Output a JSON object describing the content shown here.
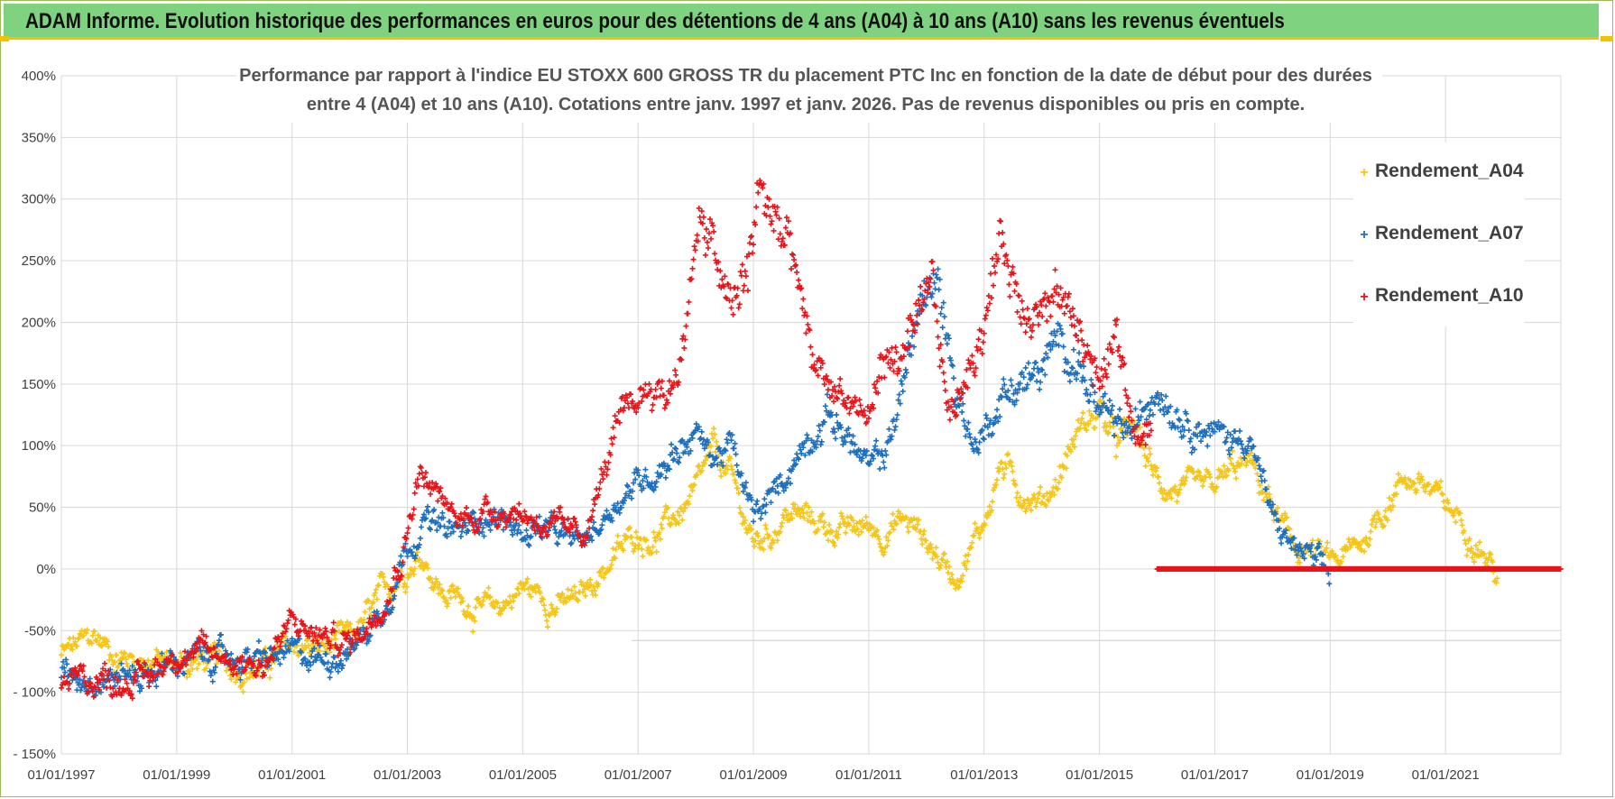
{
  "banner": {
    "title": "ADAM Informe. Evolution historique des performances en euros pour des détentions de 4 ans (A04) à 10 ans (A10) sans les revenus éventuels"
  },
  "colors": {
    "banner_bg": "#7fd27f",
    "banner_accent": "#f2c200",
    "series_a04": "#f5c518",
    "series_a07": "#1f6fbf",
    "series_a10": "#e8141a",
    "grid": "#d9d9d9"
  },
  "chart_data": {
    "type": "scatter",
    "title_line1": "Performance par rapport à l'indice EU STOXX 600 GROSS TR  du placement PTC Inc en fonction de la date de début pour des durées",
    "title_line2": "entre 4 (A04) et 10 ans (A10).  Cotations entre janv. 1997 et janv. 2026. Pas de revenus disponibles ou pris en compte.",
    "xlabel": "",
    "ylabel": "",
    "x_range": [
      1997.0,
      2023.0
    ],
    "x_tick_years": [
      1997,
      1999,
      2001,
      2003,
      2005,
      2007,
      2009,
      2011,
      2013,
      2015,
      2017,
      2019,
      2021
    ],
    "x_tick_labels": [
      "01/01/1997",
      "01/01/1999",
      "01/01/2001",
      "01/01/2003",
      "01/01/2005",
      "01/01/2007",
      "01/01/2009",
      "01/01/2011",
      "01/01/2013",
      "01/01/2015",
      "01/01/2017",
      "01/01/2019",
      "01/01/2021"
    ],
    "ylim": [
      -150,
      400
    ],
    "y_ticks": [
      400,
      350,
      300,
      250,
      200,
      150,
      100,
      50,
      0,
      -50,
      -100,
      -150
    ],
    "y_tick_labels": [
      "400%",
      "350%",
      "300%",
      "250%",
      "200%",
      "150%",
      "100%",
      "50%",
      "0%",
      "-50%",
      "- 100%",
      "- 150%"
    ],
    "grid": true,
    "legend_position": "top-right",
    "series": [
      {
        "name": "Rendement_A04",
        "color": "#f5c518",
        "x": [
          1997.0,
          1997.3,
          1997.6,
          1998.0,
          1998.5,
          1999.0,
          1999.5,
          2000.0,
          2000.5,
          2001.0,
          2001.5,
          2002.0,
          2002.3,
          2002.6,
          2003.0,
          2003.3,
          2003.6,
          2004.0,
          2004.3,
          2004.6,
          2005.0,
          2005.3,
          2005.6,
          2006.0,
          2006.3,
          2006.6,
          2007.0,
          2007.3,
          2007.6,
          2008.0,
          2008.3,
          2008.6,
          2009.0,
          2009.3,
          2009.6,
          2010.0,
          2010.3,
          2010.6,
          2011.0,
          2011.3,
          2011.6,
          2011.9,
          2012.2,
          2012.5,
          2012.8,
          2013.0,
          2013.3,
          2013.6,
          2014.0,
          2014.3,
          2014.6,
          2015.0,
          2015.3,
          2015.6,
          2016.0,
          2016.3,
          2016.6,
          2017.0,
          2017.3,
          2017.6,
          2018.0,
          2018.3,
          2018.6,
          2019.0,
          2019.3,
          2019.6,
          2020.0,
          2020.3,
          2020.6,
          2021.0,
          2021.3,
          2021.6,
          2021.9
        ],
        "y": [
          -70,
          -62,
          -55,
          -72,
          -73,
          -78,
          -75,
          -78,
          -80,
          -62,
          -65,
          -58,
          -40,
          -20,
          5,
          10,
          -20,
          -25,
          -35,
          -30,
          -15,
          -20,
          -30,
          -25,
          -5,
          10,
          30,
          25,
          40,
          60,
          95,
          75,
          20,
          30,
          45,
          40,
          35,
          30,
          35,
          30,
          40,
          30,
          10,
          -5,
          20,
          40,
          85,
          65,
          55,
          75,
          110,
          130,
          100,
          115,
          70,
          65,
          60,
          65,
          80,
          85,
          50,
          20,
          15,
          5,
          10,
          25,
          55,
          75,
          70,
          50,
          40,
          20,
          -5
        ],
        "sparse_scale": 0
      },
      {
        "name": "Rendement_A07",
        "color": "#1f6fbf",
        "x": [
          1997.0,
          1997.3,
          1997.6,
          1998.0,
          1998.5,
          1999.0,
          1999.5,
          2000.0,
          2000.5,
          2001.0,
          2001.5,
          2002.0,
          2002.3,
          2002.6,
          2003.0,
          2003.3,
          2003.6,
          2004.0,
          2004.3,
          2004.6,
          2005.0,
          2005.3,
          2005.6,
          2006.0,
          2006.3,
          2006.6,
          2007.0,
          2007.3,
          2007.6,
          2008.0,
          2008.3,
          2008.6,
          2009.0,
          2009.3,
          2009.6,
          2010.0,
          2010.3,
          2010.6,
          2011.0,
          2011.3,
          2011.6,
          2011.9,
          2012.2,
          2012.5,
          2012.8,
          2013.0,
          2013.3,
          2013.6,
          2014.0,
          2014.3,
          2014.6,
          2015.0,
          2015.3,
          2015.6,
          2016.0,
          2016.3,
          2016.6,
          2017.0,
          2017.3,
          2017.6,
          2018.0,
          2018.3,
          2018.6,
          2019.0
        ],
        "y": [
          -90,
          -87,
          -85,
          -86,
          -85,
          -75,
          -72,
          -72,
          -75,
          -70,
          -72,
          -65,
          -50,
          -30,
          20,
          40,
          30,
          30,
          45,
          40,
          30,
          35,
          25,
          20,
          35,
          55,
          70,
          80,
          95,
          110,
          90,
          100,
          40,
          55,
          80,
          110,
          125,
          110,
          80,
          95,
          150,
          220,
          230,
          150,
          100,
          110,
          140,
          150,
          160,
          185,
          170,
          125,
          115,
          110,
          150,
          130,
          120,
          110,
          105,
          110,
          40,
          20,
          10,
          -10
        ],
        "sparse_scale": 0
      },
      {
        "name": "Rendement_A10",
        "color": "#e8141a",
        "x": [
          1997.0,
          1997.3,
          1997.6,
          1998.0,
          1998.5,
          1999.0,
          1999.5,
          2000.0,
          2000.5,
          2001.0,
          2001.5,
          2002.0,
          2002.3,
          2002.6,
          2002.9,
          2003.2,
          2003.5,
          2003.8,
          2004.2,
          2004.6,
          2005.0,
          2005.3,
          2005.6,
          2006.0,
          2006.3,
          2006.6,
          2006.9,
          2007.2,
          2007.5,
          2007.8,
          2008.0,
          2008.3,
          2008.6,
          2008.9,
          2009.1,
          2009.4,
          2009.7,
          2010.0,
          2010.3,
          2010.6,
          2011.0,
          2011.2,
          2011.5,
          2011.8,
          2012.1,
          2012.4,
          2012.7,
          2013.0,
          2013.3,
          2013.6,
          2014.0,
          2014.3,
          2014.6,
          2015.0,
          2015.3,
          2015.6,
          2015.9
        ],
        "y": [
          -92,
          -90,
          -88,
          -90,
          -88,
          -65,
          -70,
          -72,
          -78,
          -45,
          -55,
          -60,
          -45,
          -20,
          10,
          80,
          60,
          40,
          45,
          50,
          45,
          40,
          30,
          25,
          60,
          110,
          130,
          150,
          140,
          180,
          280,
          260,
          210,
          240,
          310,
          280,
          250,
          170,
          150,
          140,
          120,
          165,
          170,
          190,
          230,
          120,
          160,
          200,
          270,
          215,
          210,
          220,
          200,
          150,
          190,
          110,
          110
        ],
        "sparse_scale": 0
      },
      {
        "name": "Rendement_A10_flat",
        "legend": false,
        "color": "#e8141a",
        "x": [
          2016.0,
          2023.0
        ],
        "y": [
          0,
          0
        ],
        "flat": true
      }
    ],
    "legend_entries": [
      "Rendement_A04",
      "Rendement_A07",
      "Rendement_A10"
    ]
  }
}
